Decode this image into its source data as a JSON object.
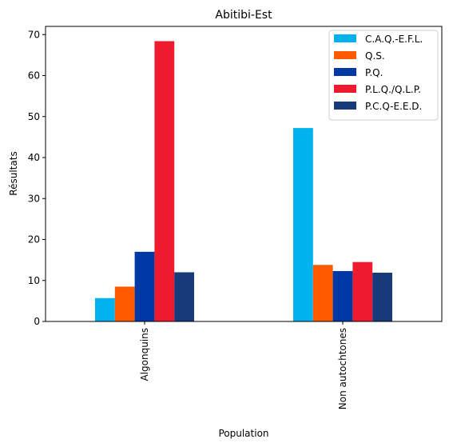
{
  "chart_data": {
    "type": "bar",
    "title": "Abitibi-Est",
    "xlabel": "Population",
    "ylabel": "Résultats",
    "categories": [
      "Algonquins",
      "Non autochtones"
    ],
    "ylim": [
      0,
      72
    ],
    "yticks": [
      0,
      10,
      20,
      30,
      40,
      50,
      60,
      70
    ],
    "grid": false,
    "legend_position": "top-right",
    "series": [
      {
        "name": "C.A.Q.-E.F.L.",
        "color": "#00b3ee",
        "values": [
          5.7,
          47.2
        ]
      },
      {
        "name": "Q.S.",
        "color": "#ff5a00",
        "values": [
          8.5,
          13.8
        ]
      },
      {
        "name": "P.Q.",
        "color": "#0039a6",
        "values": [
          17.0,
          12.3
        ]
      },
      {
        "name": "P.L.Q./Q.L.P.",
        "color": "#ed1b2e",
        "values": [
          68.4,
          14.5
        ]
      },
      {
        "name": "P.C.Q-E.E.D.",
        "color": "#173b7a",
        "values": [
          12.0,
          11.9
        ]
      }
    ]
  }
}
